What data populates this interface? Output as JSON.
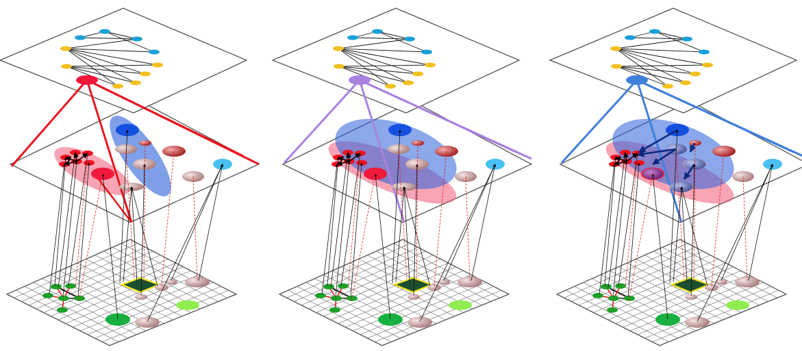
{
  "panels": [
    {
      "name": "panel-1",
      "accent_color": "#e8141e",
      "accent_node_color": "#f2163c",
      "blobs": [
        "red",
        "blue"
      ],
      "arrows": false
    },
    {
      "name": "panel-2",
      "accent_color": "#a882e0",
      "accent_node_color": "#a882e0",
      "blobs": [
        "red",
        "blue-large"
      ],
      "arrows": false
    },
    {
      "name": "panel-3",
      "accent_color": "#3f7fdc",
      "accent_node_color": "#3f7fdc",
      "blobs": [
        "red",
        "blue-large"
      ],
      "arrows": true
    }
  ],
  "colors": {
    "plane_stroke": "#555555",
    "grid_stroke": "#777777",
    "node_cyan": "#1aa0d8",
    "node_yellow": "#f2c020",
    "node_red": "#f01020",
    "node_pink": "#c8a0a0",
    "node_green": "#1ea028",
    "node_lightgreen": "#90ee50",
    "node_lightblue": "#48c0f0",
    "node_darkblue": "#1650e0",
    "blob_red": "#f05a78",
    "blob_blue": "#2a60d8",
    "focus_square": "#1a5030",
    "focus_border": "#f0e020"
  }
}
